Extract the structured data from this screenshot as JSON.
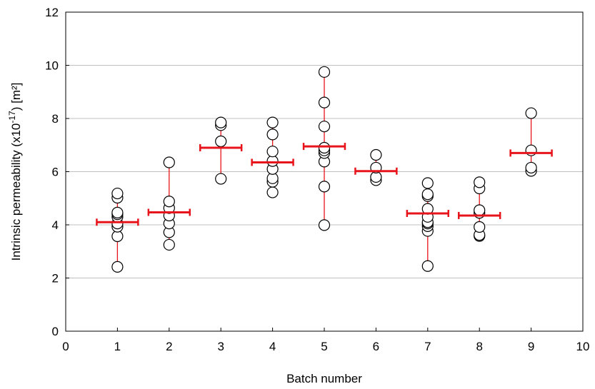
{
  "chart_data": {
    "type": "scatter",
    "title": "",
    "xlabel": "Batch number",
    "ylabel_main": "Intrinsic permeability (x10",
    "ylabel_sup": "-17",
    "ylabel_tail": ") [m²]",
    "xlim": [
      0,
      10
    ],
    "ylim": [
      0,
      12
    ],
    "xticks": [
      0,
      1,
      2,
      3,
      4,
      5,
      6,
      7,
      8,
      9,
      10
    ],
    "yticks": [
      0,
      2,
      4,
      6,
      8,
      10,
      12
    ],
    "grid": "horizontal",
    "legend": "none",
    "colors": {
      "mean": "#e8141b",
      "range_line": "#e8141b",
      "marker_fill": "#ffffff",
      "marker_edge": "#000000",
      "grid": "#c0c0c0"
    },
    "batches": [
      {
        "x": 1,
        "values": [
          2.42,
          3.57,
          3.93,
          4.05,
          4.3,
          4.4,
          4.46,
          5.02,
          5.18
        ],
        "mean": 4.1
      },
      {
        "x": 2,
        "values": [
          3.25,
          3.72,
          4.05,
          4.35,
          4.63,
          4.88,
          6.35
        ],
        "mean": 4.47
      },
      {
        "x": 3,
        "values": [
          5.73,
          7.14,
          7.75,
          7.85
        ],
        "mean": 6.9
      },
      {
        "x": 4,
        "values": [
          5.22,
          5.62,
          5.75,
          6.1,
          6.4,
          6.76,
          7.4,
          7.85
        ],
        "mean": 6.35
      },
      {
        "x": 5,
        "values": [
          3.99,
          5.44,
          6.38,
          6.7,
          6.8,
          6.9,
          7.7,
          8.6,
          9.75
        ],
        "mean": 6.95
      },
      {
        "x": 6,
        "values": [
          5.68,
          5.8,
          6.15,
          6.63
        ],
        "mean": 6.02
      },
      {
        "x": 7,
        "values": [
          2.45,
          3.77,
          3.95,
          4.05,
          4.1,
          4.3,
          4.6,
          5.08,
          5.15,
          5.57
        ],
        "mean": 4.43
      },
      {
        "x": 8,
        "values": [
          3.58,
          3.62,
          3.92,
          4.45,
          4.55,
          5.37,
          5.6
        ],
        "mean": 4.35
      },
      {
        "x": 9,
        "values": [
          6.03,
          6.15,
          6.8,
          8.2
        ],
        "mean": 6.7
      }
    ]
  }
}
